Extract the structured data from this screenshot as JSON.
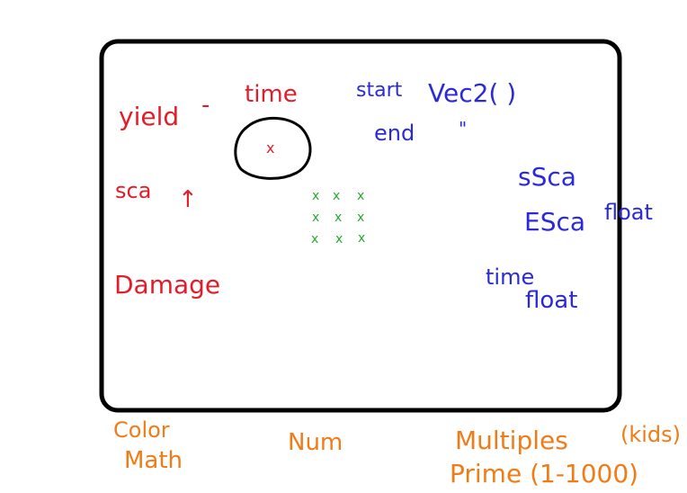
{
  "notes": {
    "red": {
      "yield": "yield",
      "dash": "-",
      "time": "time",
      "sca": "sca",
      "arrow": "↑",
      "damage": "Damage",
      "target_mark": "x"
    },
    "blue": {
      "start": "start",
      "vec2": "Vec2( )",
      "end": "end",
      "ditto": "\"",
      "s_sca": "sSca",
      "e_sca": "ESca",
      "float_1": "float",
      "time": "time",
      "float_2": "float"
    },
    "orange": {
      "color": "Color",
      "math": "Math",
      "num": "Num",
      "multiples": "Multiples",
      "kids": "(kids)",
      "prime": "Prime (1-1000)"
    },
    "grid_mark": "x"
  },
  "colors": {
    "ink_red": "#e11d2a",
    "ink_blue": "#2a2ad8",
    "ink_orange": "#f07c18",
    "ink_green": "#27a834",
    "frame": "#000000"
  }
}
